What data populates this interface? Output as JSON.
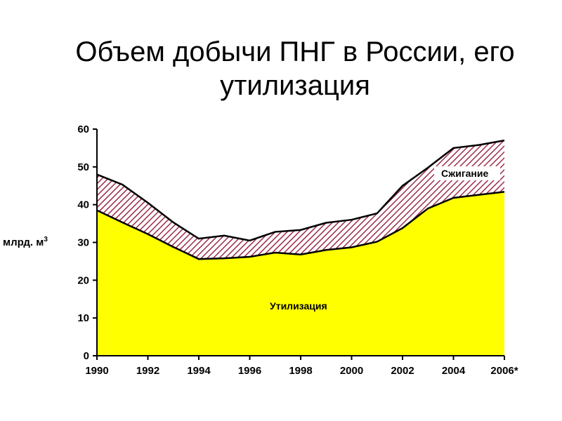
{
  "title": "Объем добычи ПНГ в России, его утилизация",
  "chart_data": {
    "type": "area",
    "title": "Объем добычи ПНГ в России, его утилизация",
    "ylabel": "млрд. м",
    "ylabel_sup": "3",
    "ylim": [
      0,
      60
    ],
    "yticks": [
      0,
      10,
      20,
      30,
      40,
      50,
      60
    ],
    "xlim": [
      1990,
      2006
    ],
    "x": [
      1990,
      1991,
      1992,
      1993,
      1994,
      1995,
      1996,
      1997,
      1998,
      1999,
      2000,
      2001,
      2002,
      2003,
      2004,
      2005,
      2006
    ],
    "xtick_labels": [
      "1990",
      "1992",
      "1994",
      "1996",
      "1998",
      "2000",
      "2002",
      "2004",
      "2006*"
    ],
    "stacked": true,
    "series": [
      {
        "name": "Утилизация",
        "color": "#ffff00",
        "values": [
          38.5,
          35.3,
          32.2,
          28.8,
          25.6,
          25.8,
          26.2,
          27.3,
          26.8,
          28.0,
          28.7,
          30.2,
          33.8,
          39.0,
          41.8,
          42.6,
          43.4
        ]
      },
      {
        "name": "Сжигание",
        "color": "#9b2c4a",
        "pattern": "diagonal-hatch",
        "values": [
          9.5,
          10.0,
          8.3,
          6.5,
          5.4,
          6.0,
          4.3,
          5.5,
          6.5,
          7.2,
          7.3,
          7.5,
          11.2,
          10.8,
          13.2,
          13.2,
          13.6
        ]
      }
    ]
  }
}
